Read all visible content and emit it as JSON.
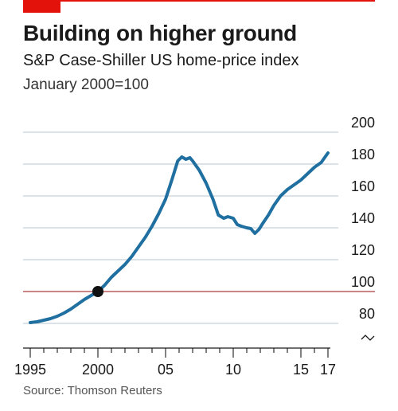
{
  "header": {
    "title": "Building on higher ground",
    "subtitle": "S&P Case-Shiller US home-price index",
    "subtitle2": "January 2000=100"
  },
  "footer": {
    "source": "Source: Thomson Reuters"
  },
  "colors": {
    "accent": "#e3120b",
    "line": "#1f6fa0",
    "grid": "#b9c7d2",
    "baseline": "#b03a3a",
    "marker": "#111111"
  },
  "chart_data": {
    "type": "line",
    "title": "Building on higher ground",
    "subtitle": "S&P Case-Shiller US home-price index",
    "ylabel": "January 2000=100",
    "ylim": [
      76,
      200
    ],
    "yticks": [
      80,
      100,
      120,
      140,
      160,
      180,
      200
    ],
    "ytick_labels": [
      "80",
      "100",
      "120",
      "140",
      "160",
      "180",
      "200"
    ],
    "xlim": [
      1995,
      2017.3
    ],
    "xticks": [
      1995,
      2000,
      2005,
      2010,
      2015,
      2017
    ],
    "xtick_labels": [
      "1995",
      "2000",
      "05",
      "10",
      "15",
      "17"
    ],
    "reference_line": 100,
    "highlight_point": {
      "x": 2000.0,
      "y": 100
    },
    "axis_break": true,
    "grid": true,
    "series": [
      {
        "x": [
          1995.0,
          1995.5,
          1996.0,
          1996.5,
          1997.0,
          1997.5,
          1998.0,
          1998.5,
          1999.0,
          1999.5,
          2000.0,
          2000.5,
          2001.0,
          2001.5,
          2002.0,
          2002.5,
          2003.0,
          2003.5,
          2004.0,
          2004.5,
          2005.0,
          2005.5,
          2005.9,
          2006.2,
          2006.5,
          2006.8,
          2007.0,
          2007.5,
          2008.0,
          2008.5,
          2008.9,
          2009.3,
          2009.6,
          2010.0,
          2010.3,
          2010.6,
          2011.0,
          2011.3,
          2011.6,
          2011.9,
          2012.2,
          2012.6,
          2013.0,
          2013.5,
          2014.0,
          2014.5,
          2015.0,
          2015.5,
          2016.0,
          2016.5,
          2017.0
        ],
        "values": [
          80.5,
          81.0,
          82.0,
          83.0,
          84.5,
          86.5,
          89.0,
          92.0,
          95.0,
          97.5,
          100.0,
          104.0,
          109.0,
          113.0,
          117.0,
          122.0,
          128.0,
          134.0,
          141.0,
          149.0,
          158.0,
          171.0,
          182.0,
          184.5,
          183.0,
          184.0,
          182.0,
          176.0,
          168.0,
          158.0,
          148.0,
          146.0,
          147.0,
          146.0,
          142.0,
          141.0,
          140.0,
          139.5,
          136.5,
          139.0,
          143.0,
          148.0,
          154.0,
          160.0,
          164.0,
          167.0,
          170.0,
          174.0,
          178.0,
          181.0,
          187.0
        ]
      }
    ]
  }
}
